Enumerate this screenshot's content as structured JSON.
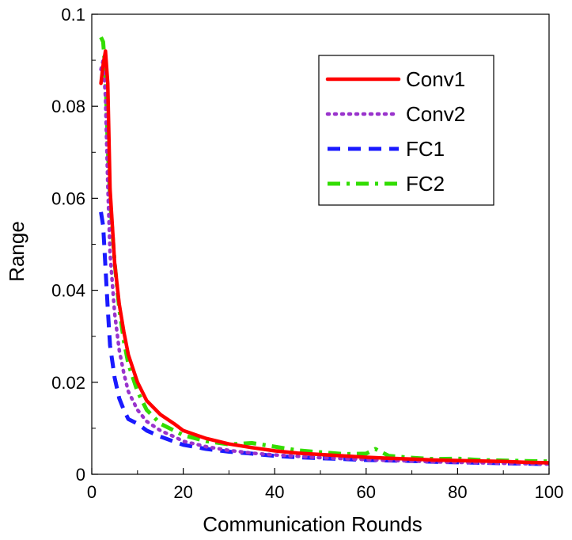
{
  "chart_data": {
    "type": "line",
    "title": "",
    "xlabel": "Communication  Rounds",
    "ylabel": "Range",
    "xlim": [
      0,
      100
    ],
    "ylim": [
      0,
      0.1
    ],
    "xticks": [
      0,
      20,
      40,
      60,
      80,
      100
    ],
    "yticks": [
      0,
      0.02,
      0.04,
      0.06,
      0.08,
      0.1
    ],
    "xtick_labels": [
      "0",
      "20",
      "40",
      "60",
      "80",
      "100"
    ],
    "ytick_labels": [
      "0",
      "0.02",
      "0.04",
      "0.06",
      "0.08",
      "0.1"
    ],
    "grid": false,
    "legend_position": "top-right",
    "series": [
      {
        "name": "Conv1",
        "color": "#ff0000",
        "style": "solid",
        "x": [
          2,
          2.5,
          3,
          3.5,
          4,
          5,
          6,
          7,
          8,
          10,
          12,
          15,
          18,
          20,
          25,
          30,
          35,
          40,
          45,
          50,
          55,
          60,
          65,
          70,
          75,
          80,
          85,
          90,
          95,
          100
        ],
        "y": [
          0.085,
          0.089,
          0.092,
          0.085,
          0.062,
          0.046,
          0.037,
          0.031,
          0.026,
          0.02,
          0.016,
          0.013,
          0.011,
          0.0095,
          0.0078,
          0.0066,
          0.0058,
          0.0051,
          0.0046,
          0.0043,
          0.004,
          0.0037,
          0.0035,
          0.0033,
          0.0031,
          0.003,
          0.0029,
          0.0028,
          0.0026,
          0.0025
        ]
      },
      {
        "name": "Conv2",
        "color": "#9933cc",
        "style": "dotted",
        "x": [
          2,
          2.5,
          3,
          3.5,
          4,
          5,
          6,
          7,
          8,
          10,
          12,
          15,
          18,
          20,
          25,
          30,
          35,
          40,
          45,
          50,
          55,
          60,
          65,
          70,
          75,
          80,
          85,
          90,
          95,
          100
        ],
        "y": [
          0.088,
          0.09,
          0.082,
          0.063,
          0.048,
          0.035,
          0.027,
          0.022,
          0.018,
          0.014,
          0.0115,
          0.0095,
          0.0082,
          0.0072,
          0.006,
          0.0052,
          0.0046,
          0.0042,
          0.0039,
          0.0036,
          0.0034,
          0.0032,
          0.003,
          0.0029,
          0.0027,
          0.0026,
          0.0025,
          0.0024,
          0.0023,
          0.0022
        ]
      },
      {
        "name": "FC1",
        "color": "#1a1aff",
        "style": "dashed",
        "x": [
          2,
          2.5,
          3,
          3.5,
          4,
          5,
          6,
          7,
          8,
          10,
          12,
          15,
          18,
          20,
          25,
          30,
          35,
          40,
          45,
          50,
          55,
          60,
          65,
          70,
          75,
          80,
          85,
          90,
          95,
          100
        ],
        "y": [
          0.057,
          0.054,
          0.045,
          0.036,
          0.028,
          0.021,
          0.0165,
          0.014,
          0.012,
          0.011,
          0.0095,
          0.0082,
          0.0071,
          0.0064,
          0.0055,
          0.0049,
          0.0045,
          0.004,
          0.0037,
          0.0035,
          0.0033,
          0.0031,
          0.003,
          0.0029,
          0.0027,
          0.0026,
          0.0025,
          0.0024,
          0.0023,
          0.0022
        ]
      },
      {
        "name": "FC2",
        "color": "#33dd00",
        "style": "dashdot",
        "x": [
          2,
          2.5,
          3,
          3.5,
          4,
          5,
          6,
          7,
          8,
          10,
          12,
          15,
          18,
          20,
          25,
          30,
          35,
          40,
          45,
          50,
          55,
          60,
          62,
          65,
          70,
          75,
          80,
          85,
          90,
          95,
          100
        ],
        "y": [
          0.095,
          0.094,
          0.087,
          0.071,
          0.06,
          0.046,
          0.036,
          0.029,
          0.024,
          0.018,
          0.014,
          0.011,
          0.0095,
          0.0085,
          0.0072,
          0.0065,
          0.0068,
          0.006,
          0.0052,
          0.0048,
          0.0044,
          0.0045,
          0.0055,
          0.004,
          0.0036,
          0.0033,
          0.0034,
          0.0031,
          0.003,
          0.0029,
          0.0028
        ]
      }
    ]
  }
}
